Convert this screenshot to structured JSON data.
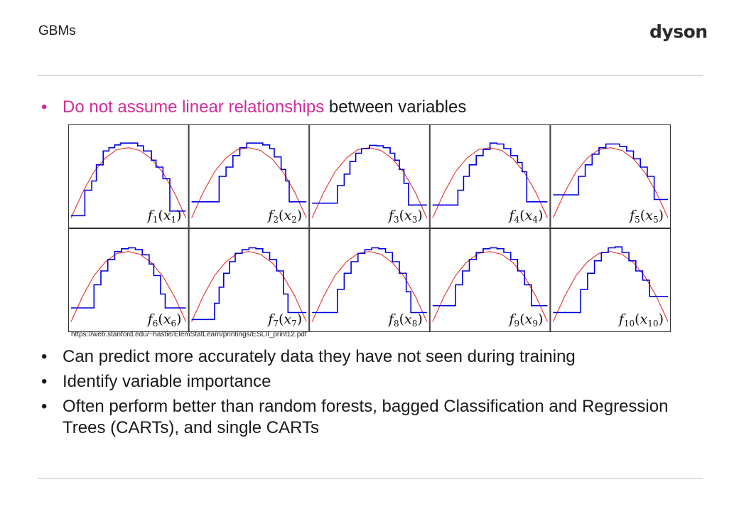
{
  "header": {
    "title": "GBMs",
    "logo_text": "dyson"
  },
  "bullets": {
    "first": {
      "highlight": "Do not assume linear relationships",
      "rest": " between variables"
    },
    "items": [
      "Can predict more accurately data they have not seen during training",
      "Identify variable importance",
      "Often perform better than random forests, bagged Classification and Regression Trees (CARTs), and single CARTs"
    ]
  },
  "figure": {
    "citation": "https://web.stanford.edu/~hastie/ElemStatLearn/printings/ESLII_print12.pdf"
  },
  "chart_data": {
    "type": "line",
    "layout": "grid 2x5",
    "step_color": "#0000dd",
    "curve_color": "#e83030",
    "panels": [
      {
        "label": "f",
        "sub": "1",
        "x": [
          0,
          0.1,
          0.12,
          0.18,
          0.22,
          0.28,
          0.33,
          0.38,
          0.43,
          0.5,
          0.58,
          0.63,
          0.7,
          0.74,
          0.8,
          0.86,
          1
        ],
        "step": [
          -0.85,
          -0.85,
          -0.3,
          -0.1,
          0.25,
          0.55,
          0.62,
          0.68,
          0.72,
          0.72,
          0.66,
          0.55,
          0.35,
          0.2,
          -0.05,
          -0.75,
          -0.75
        ]
      },
      {
        "label": "f",
        "sub": "2",
        "x": [
          0,
          0.18,
          0.24,
          0.3,
          0.36,
          0.42,
          0.48,
          0.55,
          0.62,
          0.68,
          0.72,
          0.78,
          0.82,
          0.85,
          1
        ],
        "step": [
          -0.55,
          -0.55,
          0.0,
          0.2,
          0.45,
          0.62,
          0.72,
          0.72,
          0.68,
          0.6,
          0.42,
          0.15,
          -0.1,
          -0.55,
          -0.55
        ]
      },
      {
        "label": "f",
        "sub": "3",
        "x": [
          0,
          0.16,
          0.22,
          0.28,
          0.33,
          0.38,
          0.43,
          0.5,
          0.56,
          0.62,
          0.68,
          0.72,
          0.76,
          0.8,
          0.84,
          1
        ],
        "step": [
          -0.58,
          -0.58,
          -0.2,
          0.05,
          0.32,
          0.5,
          0.6,
          0.67,
          0.66,
          0.62,
          0.5,
          0.35,
          0.15,
          -0.15,
          -0.62,
          -0.62
        ]
      },
      {
        "label": "f",
        "sub": "4",
        "x": [
          0,
          0.18,
          0.22,
          0.27,
          0.32,
          0.38,
          0.44,
          0.5,
          0.56,
          0.62,
          0.68,
          0.74,
          0.78,
          0.82,
          1
        ],
        "step": [
          -0.62,
          -0.62,
          -0.3,
          0.0,
          0.25,
          0.45,
          0.58,
          0.72,
          0.7,
          0.6,
          0.45,
          0.3,
          0.1,
          -0.55,
          -0.55
        ]
      },
      {
        "label": "f",
        "sub": "5",
        "x": [
          0,
          0.16,
          0.22,
          0.28,
          0.34,
          0.4,
          0.46,
          0.52,
          0.58,
          0.64,
          0.7,
          0.76,
          0.82,
          0.88,
          1
        ],
        "step": [
          -0.4,
          -0.4,
          0.0,
          0.25,
          0.48,
          0.62,
          0.7,
          0.7,
          0.65,
          0.55,
          0.38,
          0.2,
          0.0,
          -0.5,
          -0.5
        ]
      },
      {
        "label": "f",
        "sub": "6",
        "x": [
          0,
          0.16,
          0.2,
          0.26,
          0.32,
          0.38,
          0.44,
          0.5,
          0.56,
          0.62,
          0.68,
          0.72,
          0.78,
          0.82,
          1
        ],
        "step": [
          -0.6,
          -0.6,
          -0.1,
          0.2,
          0.45,
          0.62,
          0.68,
          0.7,
          0.66,
          0.55,
          0.35,
          0.1,
          -0.3,
          -0.6,
          -0.6
        ]
      },
      {
        "label": "f",
        "sub": "7",
        "x": [
          0,
          0.18,
          0.2,
          0.24,
          0.28,
          0.33,
          0.38,
          0.44,
          0.5,
          0.56,
          0.62,
          0.68,
          0.74,
          0.8,
          0.84,
          1
        ],
        "step": [
          -0.85,
          -0.85,
          -0.5,
          -0.15,
          0.15,
          0.4,
          0.58,
          0.66,
          0.7,
          0.68,
          0.6,
          0.45,
          0.2,
          -0.3,
          -0.7,
          -0.7
        ]
      },
      {
        "label": "f",
        "sub": "8",
        "x": [
          0,
          0.16,
          0.22,
          0.28,
          0.34,
          0.4,
          0.46,
          0.52,
          0.58,
          0.64,
          0.7,
          0.76,
          0.82,
          0.86,
          1
        ],
        "step": [
          -0.7,
          -0.7,
          -0.2,
          0.15,
          0.4,
          0.58,
          0.66,
          0.7,
          0.68,
          0.6,
          0.4,
          0.15,
          -0.25,
          -0.7,
          -0.7
        ]
      },
      {
        "label": "f",
        "sub": "9",
        "x": [
          0,
          0.14,
          0.2,
          0.26,
          0.32,
          0.38,
          0.44,
          0.5,
          0.56,
          0.62,
          0.68,
          0.74,
          0.8,
          0.86,
          1
        ],
        "step": [
          -0.55,
          -0.55,
          -0.1,
          0.2,
          0.45,
          0.6,
          0.68,
          0.7,
          0.68,
          0.6,
          0.45,
          0.2,
          -0.1,
          -0.55,
          -0.55
        ]
      },
      {
        "label": "f",
        "sub": "10",
        "x": [
          0,
          0.2,
          0.24,
          0.3,
          0.36,
          0.42,
          0.48,
          0.54,
          0.6,
          0.66,
          0.72,
          0.78,
          0.84,
          1
        ],
        "step": [
          -0.7,
          -0.7,
          -0.2,
          0.15,
          0.42,
          0.6,
          0.7,
          0.72,
          0.6,
          0.42,
          0.2,
          0.0,
          -0.35,
          -0.35
        ]
      }
    ],
    "curve": {
      "x": [
        0,
        0.1,
        0.2,
        0.3,
        0.4,
        0.5,
        0.6,
        0.7,
        0.8,
        0.9,
        1
      ],
      "y": [
        -0.9,
        -0.35,
        0.1,
        0.4,
        0.58,
        0.62,
        0.56,
        0.38,
        0.08,
        -0.35,
        -0.9
      ]
    }
  }
}
